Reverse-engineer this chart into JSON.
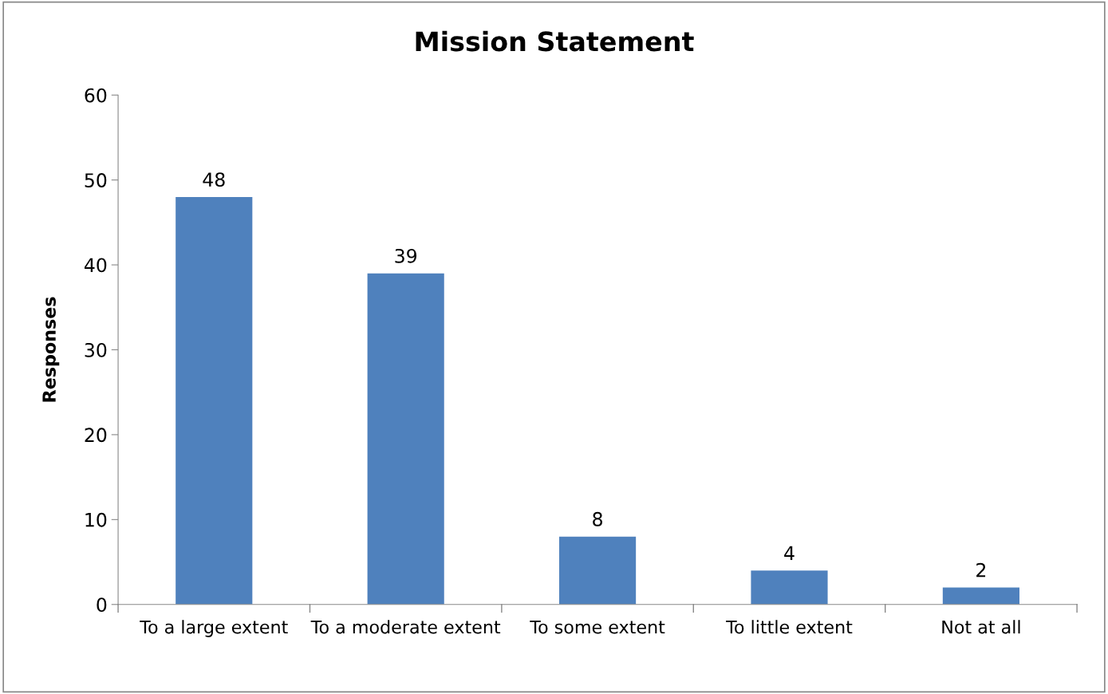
{
  "chart_data": {
    "type": "bar",
    "title": "Mission Statement",
    "ylabel": "Responses",
    "categories": [
      "To a large extent",
      "To a moderate extent",
      "To some extent",
      "To little extent",
      "Not at all"
    ],
    "values": [
      48,
      39,
      8,
      4,
      2
    ],
    "color": "#4f81bd",
    "ylim": [
      0,
      60
    ],
    "yticks": [
      0,
      10,
      20,
      30,
      40,
      50,
      60
    ],
    "grid": false,
    "data_labels": true,
    "legend": false
  }
}
